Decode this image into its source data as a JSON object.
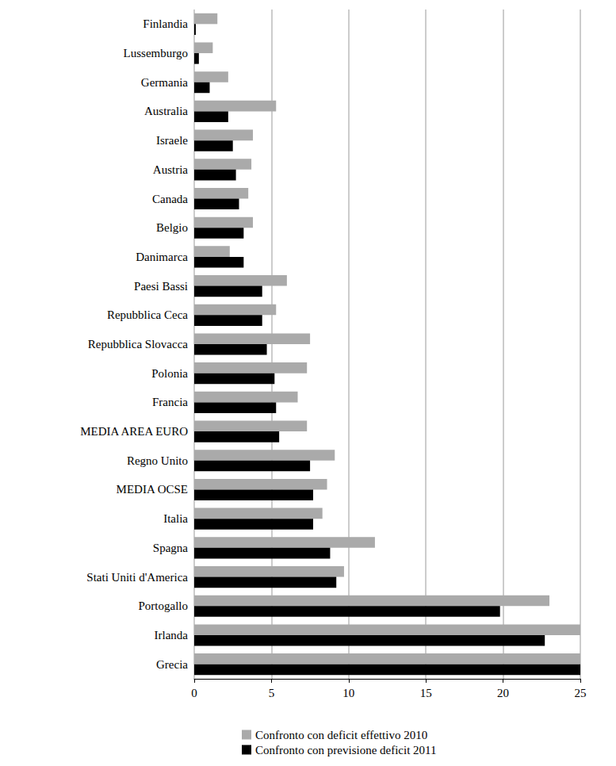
{
  "chart_data": {
    "type": "bar",
    "orientation": "horizontal",
    "categories": [
      "Finlandia",
      "Lussemburgo",
      "Germania",
      "Australia",
      "Israele",
      "Austria",
      "Canada",
      "Belgio",
      "Danimarca",
      "Paesi Bassi",
      "Repubblica Ceca",
      "Repubblica Slovacca",
      "Polonia",
      "Francia",
      "MEDIA AREA EURO",
      "Regno Unito",
      "MEDIA OCSE",
      "Italia",
      "Spagna",
      "Stati Uniti d'America",
      "Portogallo",
      "Irlanda",
      "Grecia"
    ],
    "series": [
      {
        "name": "Confronto con deficit effettivo 2010",
        "color": "#aaaaaa",
        "values": [
          1.5,
          1.2,
          2.2,
          5.3,
          3.8,
          3.7,
          3.5,
          3.8,
          2.3,
          6.0,
          5.3,
          7.5,
          7.3,
          6.7,
          7.3,
          9.1,
          8.6,
          8.3,
          11.7,
          9.7,
          23.0,
          25,
          25
        ]
      },
      {
        "name": "Confronto con previsione deficit 2011",
        "color": "#000000",
        "values": [
          0.1,
          0.3,
          1.0,
          2.2,
          2.5,
          2.7,
          2.9,
          3.2,
          3.2,
          4.4,
          4.4,
          4.7,
          5.2,
          5.3,
          5.5,
          7.5,
          7.7,
          7.7,
          8.8,
          9.2,
          19.8,
          22.7,
          25
        ]
      }
    ],
    "xlim": [
      0,
      25
    ],
    "xticks": [
      0,
      5,
      10,
      15,
      20,
      25
    ],
    "grid": true,
    "legend": "bottom"
  }
}
